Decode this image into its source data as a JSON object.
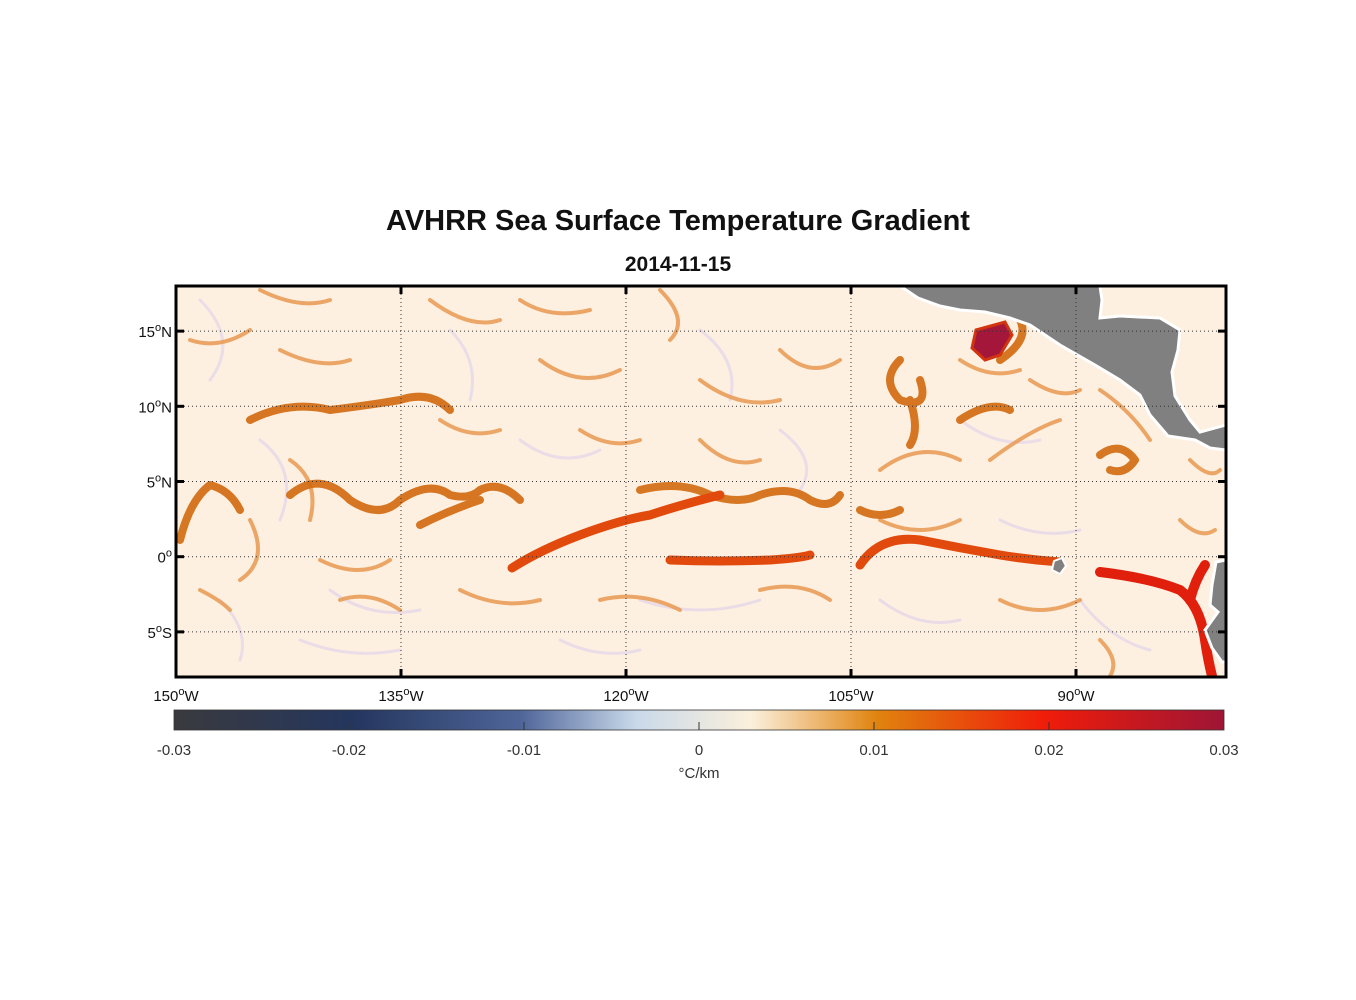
{
  "title": "AVHRR Sea Surface Temperature Gradient",
  "date": "2014-11-15",
  "map": {
    "lon_range": [
      -150,
      -80
    ],
    "lat_range": [
      -8,
      18
    ],
    "grid": "dotted",
    "land_color": "#808080",
    "ocean_base_color": "#fdf0e0",
    "lat_ticks": [
      {
        "value": 15,
        "num": "15",
        "hem": "N"
      },
      {
        "value": 10,
        "num": "10",
        "hem": "N"
      },
      {
        "value": 5,
        "num": "5",
        "hem": "N"
      },
      {
        "value": 0,
        "num": "0",
        "hem": ""
      },
      {
        "value": -5,
        "num": "5",
        "hem": "S"
      }
    ],
    "lon_ticks": [
      {
        "value": -150,
        "num": "150",
        "hem": "W"
      },
      {
        "value": -135,
        "num": "135",
        "hem": "W"
      },
      {
        "value": -120,
        "num": "120",
        "hem": "W"
      },
      {
        "value": -105,
        "num": "105",
        "hem": "W"
      },
      {
        "value": -90,
        "num": "90",
        "hem": "W"
      }
    ]
  },
  "colorbar": {
    "range": [
      -0.03,
      0.03
    ],
    "ticks": [
      "-0.03",
      "-0.02",
      "-0.01",
      "0",
      "0.01",
      "0.02",
      "0.03"
    ],
    "tick_values": [
      -0.03,
      -0.02,
      -0.01,
      0,
      0.01,
      0.02,
      0.03
    ],
    "label": "°C/km",
    "colors": [
      "#3a3a3e",
      "#24365e",
      "#4f6599",
      "#c9d9ea",
      "#fbf0dc",
      "#e0830e",
      "#f01c0a",
      "#9e1535"
    ]
  }
}
